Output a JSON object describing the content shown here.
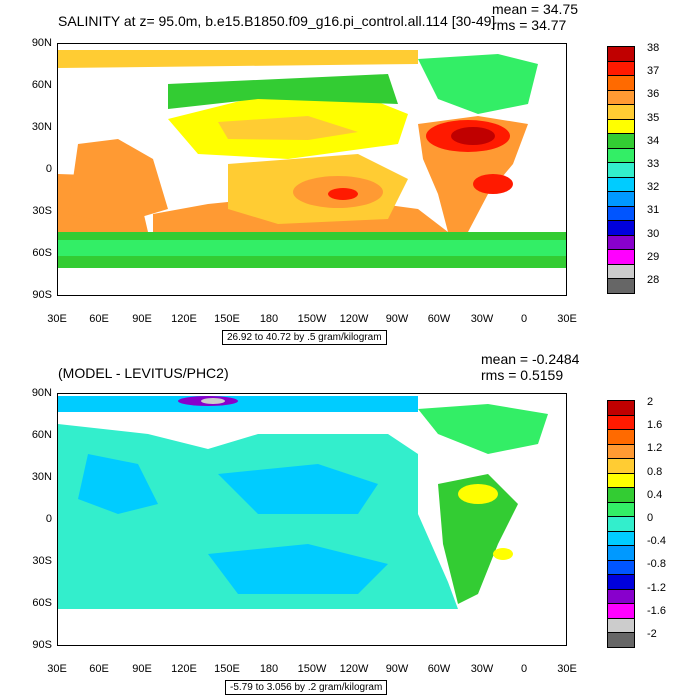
{
  "top": {
    "title": "SALINITY at z=  95.0m, b.e15.B1850.f09_g16.pi_control.all.114 [30-49]",
    "mean": "mean = 34.75",
    "rms": "rms = 34.77",
    "range": "26.92 to 40.72 by .5 gram/kilogram",
    "colorbar_labels": [
      "38",
      "37",
      "36",
      "35",
      "34",
      "33",
      "32",
      "31",
      "30",
      "29",
      "28"
    ],
    "colorbar_colors": [
      "#c00000",
      "#ff1a00",
      "#ff6a00",
      "#ff9a33",
      "#ffcc33",
      "#ffff00",
      "#33cc33",
      "#33ee66",
      "#33eecc",
      "#00ccff",
      "#0099ff",
      "#0055ff",
      "#0000dd",
      "#8800cc",
      "#ff00ff",
      "#cccccc",
      "#666666"
    ]
  },
  "bottom": {
    "title": "(MODEL - LEVITUS/PHC2)",
    "mean": "mean = -0.2484",
    "rms": "rms = 0.5159",
    "range": "-5.79 to 3.056 by .2 gram/kilogram",
    "colorbar_labels": [
      "2",
      "1.6",
      "1.2",
      "0.8",
      "0.4",
      "0",
      "-0.4",
      "-0.8",
      "-1.2",
      "-1.6",
      "-2"
    ],
    "colorbar_colors": [
      "#c00000",
      "#ff1a00",
      "#ff6a00",
      "#ff9a33",
      "#ffcc33",
      "#ffff00",
      "#33cc33",
      "#33ee66",
      "#33eecc",
      "#00ccff",
      "#0099ff",
      "#0055ff",
      "#0000dd",
      "#8800cc",
      "#ff00ff",
      "#cccccc",
      "#666666"
    ]
  },
  "axes": {
    "lat_labels": [
      "90N",
      "60N",
      "30N",
      "0",
      "30S",
      "60S",
      "90S"
    ],
    "lon_labels": [
      "30E",
      "60E",
      "90E",
      "120E",
      "150E",
      "180",
      "150W",
      "120W",
      "90W",
      "60W",
      "30W",
      "0",
      "30E"
    ]
  }
}
